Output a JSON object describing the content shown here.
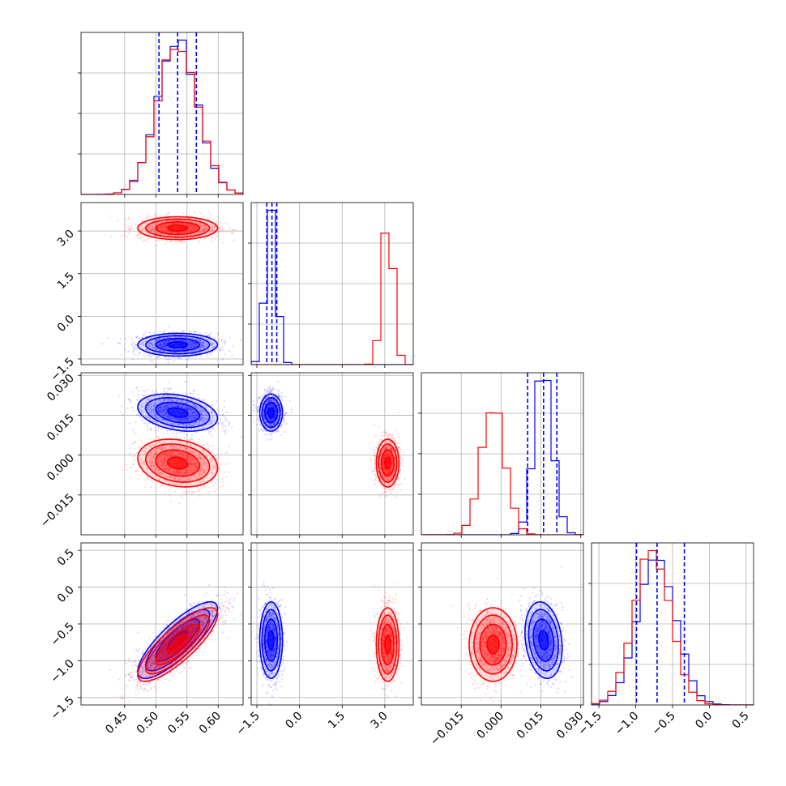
{
  "chart_data": {
    "type": "corner",
    "grid": true,
    "colors": {
      "blue": "#0000ff",
      "red": "#ff0000"
    },
    "series": [
      {
        "color": "#0000ff",
        "means": [
          0.535,
          -1.0,
          0.016,
          -0.72
        ],
        "stds": [
          0.032,
          0.2,
          0.0035,
          0.26
        ],
        "quantiles_shown_for": "blue",
        "quantiles": [
          [
            0.505,
            0.535,
            0.565
          ],
          [
            -1.15,
            -0.97,
            -0.8
          ],
          [
            0.01,
            0.016,
            0.021
          ],
          [
            -0.99,
            -0.71,
            -0.34
          ]
        ],
        "correlations": {
          "0-3": 0.82,
          "0-2": -0.3,
          "2-3": -0.2
        }
      },
      {
        "color": "#ff0000",
        "means": [
          0.535,
          3.1,
          -0.003,
          -0.78
        ],
        "stds": [
          0.032,
          0.2,
          0.0045,
          0.25
        ],
        "correlations": {
          "0-3": 0.82,
          "0-2": -0.2,
          "2-3": 0.0
        }
      }
    ],
    "axes": [
      {
        "range": [
          0.38,
          0.64
        ],
        "ticks": [
          0.45,
          0.5,
          0.55,
          0.6
        ],
        "tick_labels": [
          "0.45",
          "0.50",
          "0.55",
          "0.60"
        ]
      },
      {
        "range": [
          -1.7,
          4.0
        ],
        "ticks": [
          -1.5,
          0.0,
          1.5,
          3.0
        ],
        "tick_labels": [
          "−1.5",
          "0.0",
          "1.5",
          "3.0"
        ]
      },
      {
        "range": [
          -0.03,
          0.031
        ],
        "ticks": [
          -0.015,
          0.0,
          0.015,
          0.03
        ],
        "tick_labels": [
          "−0.015",
          "0.000",
          "0.015",
          "0.030"
        ]
      },
      {
        "range": [
          -1.6,
          0.6
        ],
        "ticks": [
          -1.5,
          -1.0,
          -0.5,
          0.0,
          0.5
        ],
        "tick_labels": [
          "−1.5",
          "−1.0",
          "−0.5",
          "0.0",
          "0.5"
        ]
      }
    ]
  }
}
